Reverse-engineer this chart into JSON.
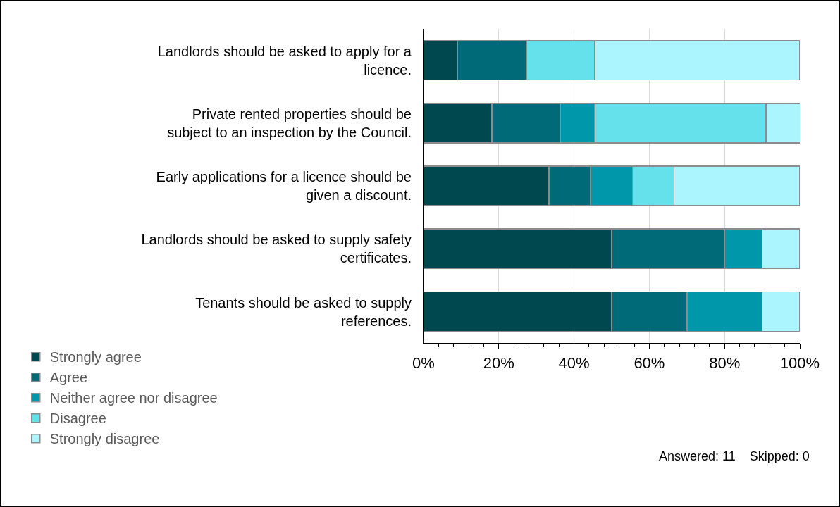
{
  "chart_data": {
    "type": "bar",
    "orientation": "horizontal",
    "stacked": true,
    "categories": [
      "Landlords should be asked to apply for a licence.",
      "Private rented properties should be subject to an inspection by the Council.",
      "Early applications for a licence should be given a discount.",
      "Landlords should be asked to supply safety certificates.",
      "Tenants should be asked to supply references."
    ],
    "series": [
      {
        "name": "Strongly agree",
        "color": "#004850",
        "values": [
          9.1,
          18.2,
          33.3,
          50,
          50
        ]
      },
      {
        "name": "Agree",
        "color": "#006a78",
        "values": [
          18.2,
          18.2,
          11.1,
          30,
          20
        ]
      },
      {
        "name": "Neither agree nor disagree",
        "color": "#0097aa",
        "values": [
          0,
          9.1,
          11.1,
          10,
          20
        ]
      },
      {
        "name": "Disagree",
        "color": "#64e1ea",
        "values": [
          18.2,
          45.5,
          11.1,
          0,
          0
        ]
      },
      {
        "name": "Strongly disagree",
        "color": "#aaf5ff",
        "values": [
          54.5,
          9.1,
          33.3,
          10,
          10
        ]
      }
    ],
    "xlim": [
      0,
      100
    ],
    "xticks": [
      {
        "value": 0,
        "label": "0%"
      },
      {
        "value": 20,
        "label": "20%"
      },
      {
        "value": 40,
        "label": "40%"
      },
      {
        "value": 60,
        "label": "60%"
      },
      {
        "value": 80,
        "label": "80%"
      },
      {
        "value": 100,
        "label": "100%"
      }
    ],
    "grid": "x",
    "legend": "bottom",
    "annotations": [
      "Answered: 11    Skipped: 0"
    ]
  }
}
